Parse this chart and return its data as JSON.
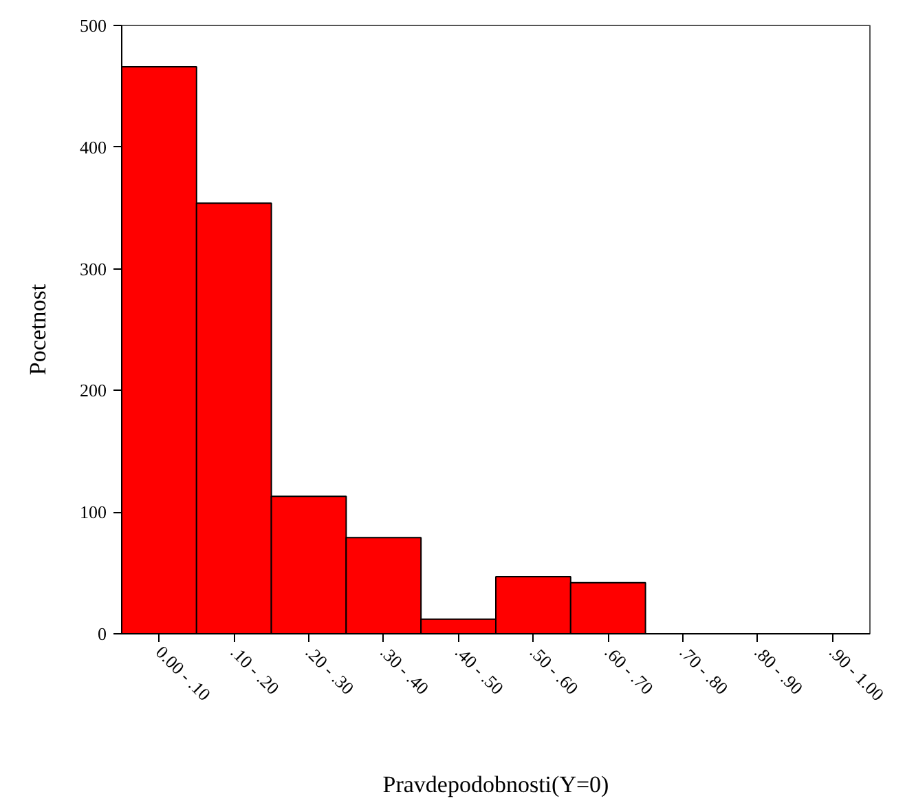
{
  "chart_data": {
    "type": "bar",
    "xlabel": "Pravdepodobnosti(Y=0)",
    "ylabel": "Pocetnost",
    "categories": [
      "0.00 - .10",
      ".10 - .20",
      ".20 - .30",
      ".30 - .40",
      ".40 - .50",
      ".50 - .60",
      ".60 - .70",
      ".70 - .80",
      ".80 - .90",
      ".90 - 1.00"
    ],
    "values": [
      466,
      354,
      113,
      79,
      12,
      47,
      42,
      0,
      0,
      0
    ],
    "color": "#ff0000",
    "ylim": [
      0,
      500
    ],
    "yticks": [
      0,
      100,
      200,
      300,
      400,
      500
    ],
    "grid": false
  }
}
